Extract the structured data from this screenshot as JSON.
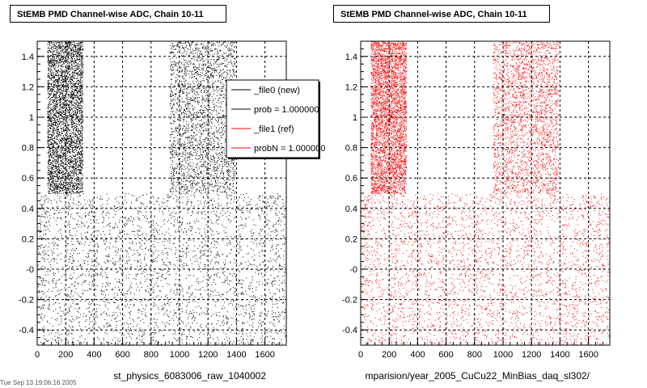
{
  "chart_data": [
    {
      "type": "scatter",
      "title": "StEMB PMD Channel-wise ADC, Chain 10-11",
      "xlabel": "st_physics_6083006_raw_1040002",
      "ylabel": "",
      "xlim": [
        0,
        1750
      ],
      "ylim": [
        -0.5,
        1.5
      ],
      "x_ticks": [
        "0",
        "200",
        "400",
        "600",
        "800",
        "1000",
        "1200",
        "1400",
        "1600"
      ],
      "y_ticks": [
        "-0.4",
        "-0.2",
        "-0",
        "0.2",
        "0.4",
        "0.6",
        "0.8",
        "1",
        "1.2",
        "1.4"
      ],
      "grid": true,
      "series": [
        {
          "name": "_file0 (new)",
          "color": "#000000",
          "bands": [
            {
              "x": [
                70,
                320
              ],
              "y": [
                0.5,
                1.5
              ],
              "density": "high"
            },
            {
              "x": [
                930,
                1390
              ],
              "y": [
                0.5,
                1.5
              ],
              "density": "medium"
            },
            {
              "x": [
                0,
                1750
              ],
              "y": [
                -0.5,
                0.5
              ],
              "density": "low"
            }
          ]
        }
      ],
      "legend": {
        "placement": "top-right",
        "entries": [
          {
            "label": "_file0 (new)",
            "color": "#000000"
          },
          {
            "label": "prob = 1.000000",
            "color": "#000000"
          },
          {
            "label": "_file1 (ref)",
            "color": "#ff0000"
          },
          {
            "label": "probN = 1.000000",
            "color": "#ff0000"
          }
        ]
      }
    },
    {
      "type": "scatter",
      "title": "StEMB PMD Channel-wise ADC, Chain 10-11",
      "xlabel": "mparision/year_2005_CuCu22_MinBias_daq_sl302/",
      "ylabel": "",
      "xlim": [
        0,
        1750
      ],
      "ylim": [
        -0.5,
        1.5
      ],
      "x_ticks": [
        "0",
        "200",
        "400",
        "600",
        "800",
        "1000",
        "1200",
        "1400",
        "1600"
      ],
      "y_ticks": [
        "-0.4",
        "-0.2",
        "-0",
        "0.2",
        "0.4",
        "0.6",
        "0.8",
        "1",
        "1.2",
        "1.4"
      ],
      "grid": true,
      "series": [
        {
          "name": "_file1 (ref)",
          "color": "#ff0000",
          "bands": [
            {
              "x": [
                70,
                320
              ],
              "y": [
                0.5,
                1.5
              ],
              "density": "high"
            },
            {
              "x": [
                930,
                1390
              ],
              "y": [
                0.5,
                1.5
              ],
              "density": "medium"
            },
            {
              "x": [
                0,
                1750
              ],
              "y": [
                -0.5,
                0.5
              ],
              "density": "low"
            }
          ]
        }
      ]
    }
  ],
  "footer_text": "Tue Sep 13 19:06:16 2005"
}
